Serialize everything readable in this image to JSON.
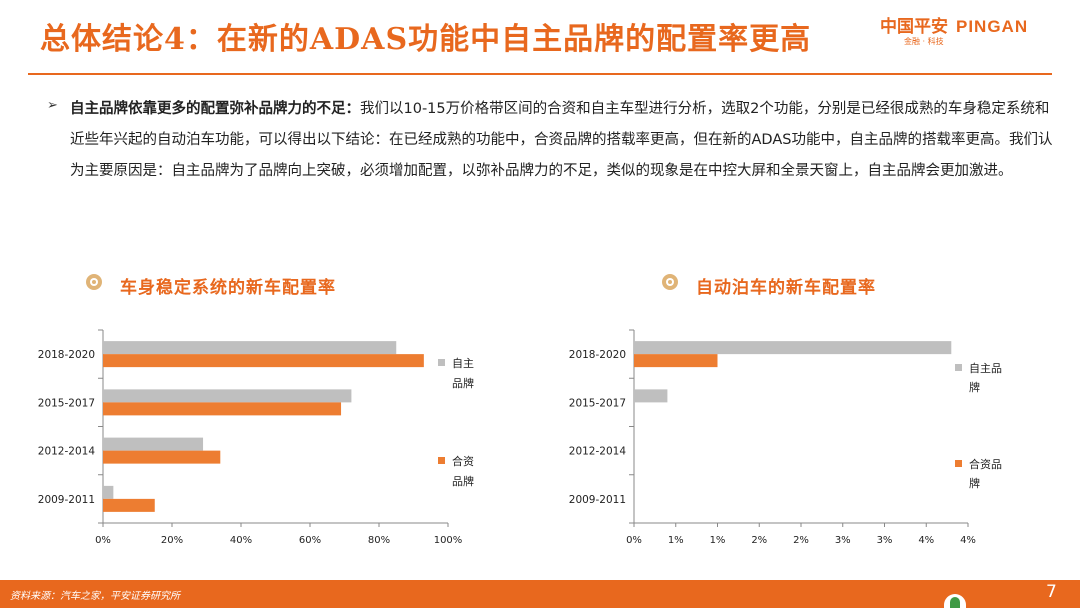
{
  "header": {
    "title": "总体结论4：在新的ADAS功能中自主品牌的配置率更高",
    "logo_cn": "中国平安",
    "logo_en": "PINGAN",
    "logo_sub": "金融 · 科技"
  },
  "body": {
    "bullet": "➢",
    "lead": "自主品牌依靠更多的配置弥补品牌力的不足：",
    "text": "我们以10-15万价格带区间的合资和自主车型进行分析，选取2个功能，分别是已经很成熟的车身稳定系统和近些年兴起的自动泊车功能，可以得出以下结论：在已经成熟的功能中，合资品牌的搭载率更高，但在新的ADAS功能中，自主品牌的搭载率更高。我们认为主要原因是：自主品牌为了品牌向上突破，必须增加配置，以弥补品牌力的不足，类似的现象是在中控大屏和全景天窗上，自主品牌会更加激进。"
  },
  "chart_data": [
    {
      "type": "bar",
      "orientation": "horizontal",
      "title": "车身稳定系统的新车配置率",
      "categories": [
        "2018-2020",
        "2015-2017",
        "2012-2014",
        "2009-2011"
      ],
      "series": [
        {
          "name": "自主品牌",
          "color": "#bfbfbf",
          "values": [
            85,
            72,
            29,
            3
          ]
        },
        {
          "name": "合资品牌",
          "color": "#ed7d31",
          "values": [
            93,
            69,
            34,
            15
          ]
        }
      ],
      "xlim": [
        0,
        100
      ],
      "xticks": [
        "0%",
        "20%",
        "40%",
        "60%",
        "80%",
        "100%"
      ],
      "legend_placement": "right"
    },
    {
      "type": "bar",
      "orientation": "horizontal",
      "title": "自动泊车的新车配置率",
      "categories": [
        "2018-2020",
        "2015-2017",
        "2012-2014",
        "2009-2011"
      ],
      "series": [
        {
          "name": "自主品牌",
          "color": "#bfbfbf",
          "values": [
            3.8,
            0.4,
            0,
            0
          ]
        },
        {
          "name": "合资品牌",
          "color": "#ed7d31",
          "values": [
            1.0,
            0,
            0,
            0
          ]
        }
      ],
      "xlim": [
        0,
        4
      ],
      "xticks": [
        "0%",
        "1%",
        "1%",
        "2%",
        "2%",
        "3%",
        "3%",
        "4%",
        "4%"
      ],
      "legend_placement": "right"
    }
  ],
  "footer": {
    "source": "资料来源：汽车之家，平安证券研究所",
    "page": "7"
  },
  "colors": {
    "accent": "#e8681e",
    "icon": "#e0b477"
  }
}
